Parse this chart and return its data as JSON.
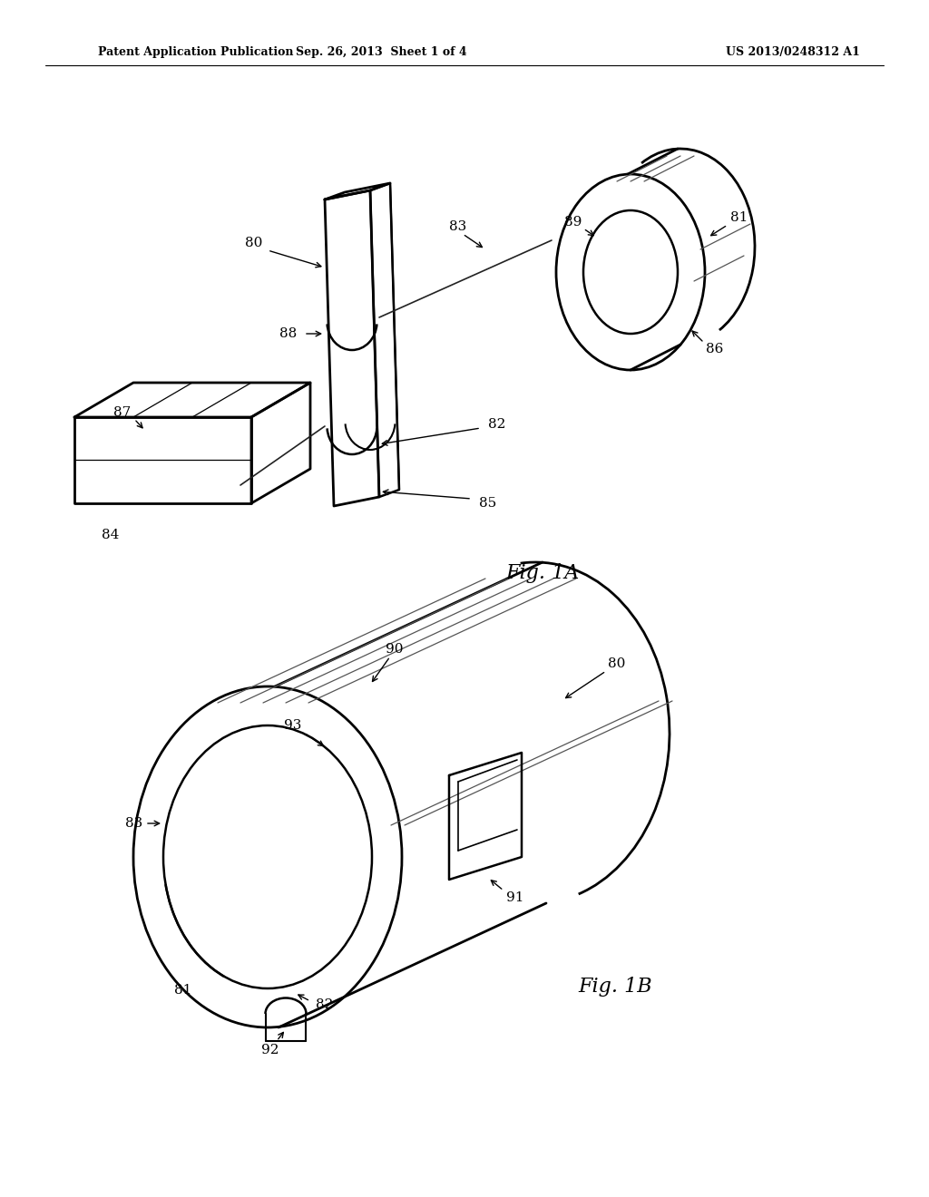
{
  "background_color": "#ffffff",
  "line_color": "#000000",
  "header_left": "Patent Application Publication",
  "header_center": "Sep. 26, 2013  Sheet 1 of 4",
  "header_right": "US 2013/0248312 A1",
  "fig1a_label": "Fig. 1A",
  "fig1b_label": "Fig. 1B",
  "header_fontsize": 10,
  "fig_label_fontsize": 16,
  "annotation_fontsize": 11,
  "line_width": 1.5
}
